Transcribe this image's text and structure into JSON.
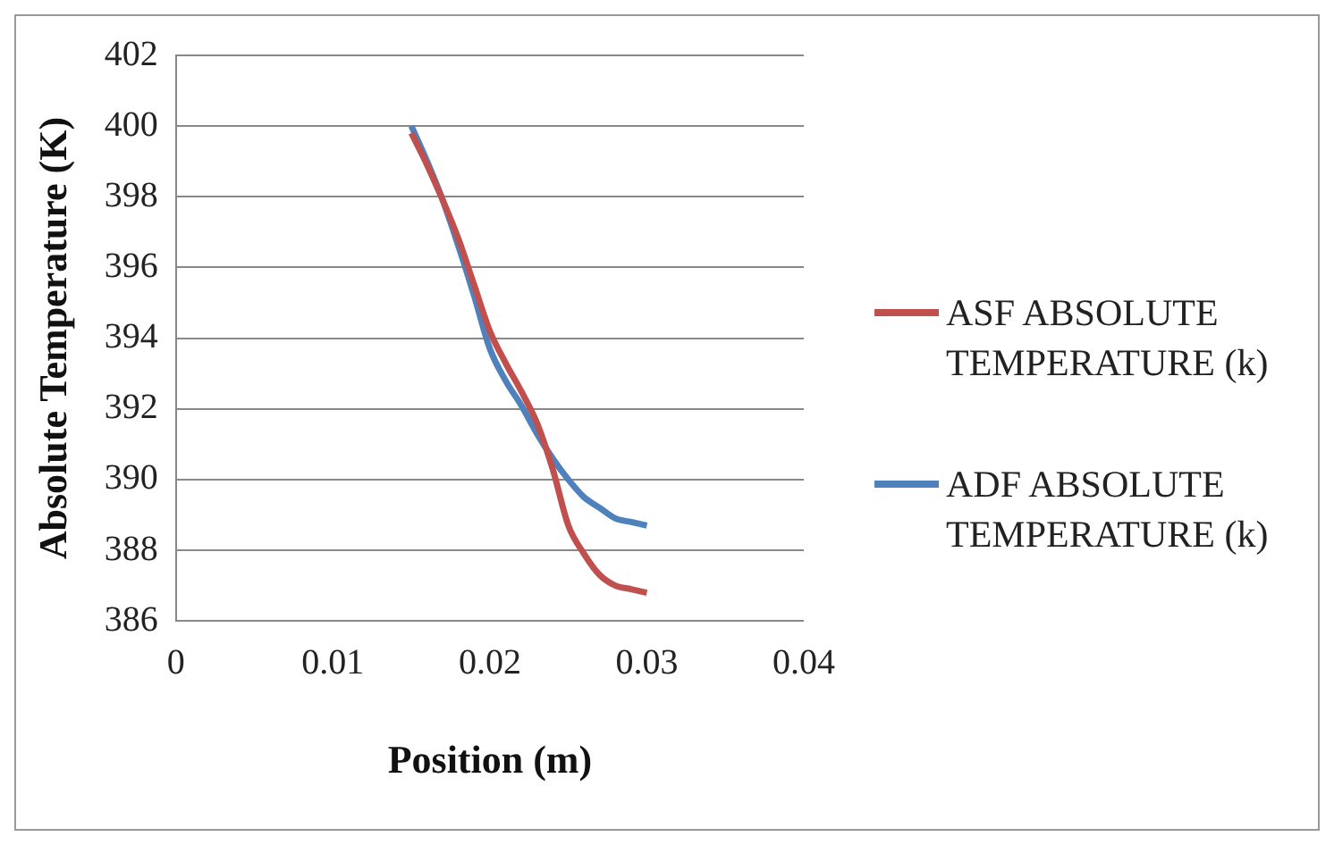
{
  "chart_data": {
    "type": "line",
    "xlabel": "Position (m)",
    "ylabel": "Absolute Temperature (K)",
    "xlim": [
      0,
      0.04
    ],
    "xticks": [
      0,
      0.01,
      0.02,
      0.03,
      0.04
    ],
    "ylim": [
      386,
      402
    ],
    "yticks": [
      386,
      388,
      390,
      392,
      394,
      396,
      398,
      400,
      402
    ],
    "grid": "y",
    "legend": "right",
    "marker": "none",
    "line_style": "solid",
    "x": [
      0.015,
      0.016,
      0.017,
      0.018,
      0.019,
      0.02,
      0.021,
      0.022,
      0.023,
      0.024,
      0.025,
      0.026,
      0.027,
      0.028,
      0.029,
      0.03
    ],
    "series": [
      {
        "name": "ASF ABSOLUTE TEMPERATURE (k)",
        "color": "#c0504d",
        "values": [
          399.8,
          398.9,
          397.9,
          396.8,
          395.5,
          394.2,
          393.3,
          392.5,
          391.6,
          390.3,
          388.7,
          387.9,
          387.3,
          387.0,
          386.9,
          386.8
        ]
      },
      {
        "name": "ADF ABSOLUTE TEMPERATURE (k)",
        "color": "#4f81bd",
        "values": [
          400.0,
          399.0,
          397.9,
          396.6,
          395.2,
          393.7,
          392.8,
          392.1,
          391.3,
          390.6,
          390.0,
          389.5,
          389.2,
          388.9,
          388.8,
          388.7
        ]
      }
    ]
  }
}
